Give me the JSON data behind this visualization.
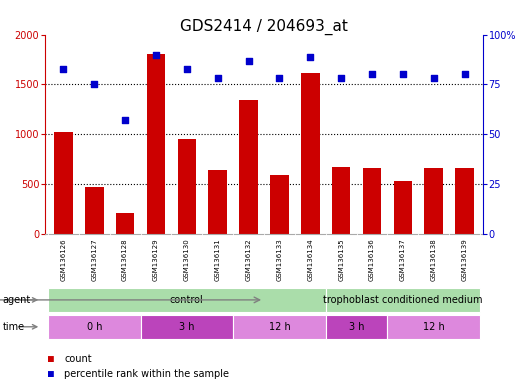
{
  "title": "GDS2414 / 204693_at",
  "samples": [
    "GSM136126",
    "GSM136127",
    "GSM136128",
    "GSM136129",
    "GSM136130",
    "GSM136131",
    "GSM136132",
    "GSM136133",
    "GSM136134",
    "GSM136135",
    "GSM136136",
    "GSM136137",
    "GSM136138",
    "GSM136139"
  ],
  "counts": [
    1020,
    470,
    210,
    1810,
    950,
    640,
    1340,
    590,
    1610,
    670,
    660,
    530,
    660,
    660
  ],
  "percentile": [
    83,
    75,
    57,
    90,
    83,
    78,
    87,
    78,
    89,
    78,
    80,
    80,
    78,
    80
  ],
  "ylim_left": [
    0,
    2000
  ],
  "ylim_right": [
    0,
    100
  ],
  "yticks_left": [
    0,
    500,
    1000,
    1500,
    2000
  ],
  "yticks_right": [
    0,
    25,
    50,
    75,
    100
  ],
  "bar_color": "#cc0000",
  "dot_color": "#0000cc",
  "bg_color": "#ffffff",
  "agent_groups": [
    {
      "label": "control",
      "start": 0,
      "end": 9,
      "color": "#aaddaa"
    },
    {
      "label": "trophoblast conditioned medium",
      "start": 9,
      "end": 14,
      "color": "#aaddaa"
    }
  ],
  "time_groups": [
    {
      "label": "0 h",
      "start": 0,
      "end": 3,
      "color": "#dd88dd"
    },
    {
      "label": "3 h",
      "start": 3,
      "end": 6,
      "color": "#cc55cc"
    },
    {
      "label": "12 h",
      "start": 6,
      "end": 9,
      "color": "#dd88dd"
    },
    {
      "label": "3 h",
      "start": 9,
      "end": 11,
      "color": "#cc55cc"
    },
    {
      "label": "12 h",
      "start": 11,
      "end": 14,
      "color": "#dd88dd"
    }
  ],
  "left_axis_color": "#cc0000",
  "right_axis_color": "#0000cc",
  "title_fontsize": 11,
  "tick_label_fontsize": 7,
  "sample_label_fontsize": 5,
  "row_label_fontsize": 7,
  "legend_fontsize": 7
}
